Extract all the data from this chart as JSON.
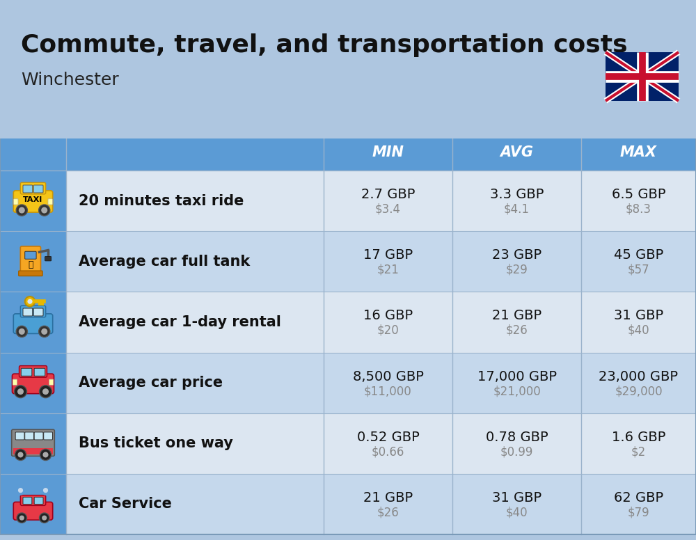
{
  "title": "Commute, travel, and transportation costs",
  "subtitle": "Winchester",
  "header_bg": "#5b9bd5",
  "header_text_color": "#ffffff",
  "row_bg_odd": "#dce6f1",
  "row_bg_even": "#c5d8ec",
  "title_bg": "#aec6e0",
  "col_headers": [
    "MIN",
    "AVG",
    "MAX"
  ],
  "rows": [
    {
      "label": "20 minutes taxi ride",
      "min_gbp": "2.7 GBP",
      "min_usd": "$3.4",
      "avg_gbp": "3.3 GBP",
      "avg_usd": "$4.1",
      "max_gbp": "6.5 GBP",
      "max_usd": "$8.3"
    },
    {
      "label": "Average car full tank",
      "min_gbp": "17 GBP",
      "min_usd": "$21",
      "avg_gbp": "23 GBP",
      "avg_usd": "$29",
      "max_gbp": "45 GBP",
      "max_usd": "$57"
    },
    {
      "label": "Average car 1-day rental",
      "min_gbp": "16 GBP",
      "min_usd": "$20",
      "avg_gbp": "21 GBP",
      "avg_usd": "$26",
      "max_gbp": "31 GBP",
      "max_usd": "$40"
    },
    {
      "label": "Average car price",
      "min_gbp": "8,500 GBP",
      "min_usd": "$11,000",
      "avg_gbp": "17,000 GBP",
      "avg_usd": "$21,000",
      "max_gbp": "23,000 GBP",
      "max_usd": "$29,000"
    },
    {
      "label": "Bus ticket one way",
      "min_gbp": "0.52 GBP",
      "min_usd": "$0.66",
      "avg_gbp": "0.78 GBP",
      "avg_usd": "$0.99",
      "max_gbp": "1.6 GBP",
      "max_usd": "$2"
    },
    {
      "label": "Car Service",
      "min_gbp": "21 GBP",
      "min_usd": "$26",
      "avg_gbp": "31 GBP",
      "avg_usd": "$40",
      "max_gbp": "62 GBP",
      "max_usd": "$79"
    }
  ],
  "background_color": "#aec6e0"
}
